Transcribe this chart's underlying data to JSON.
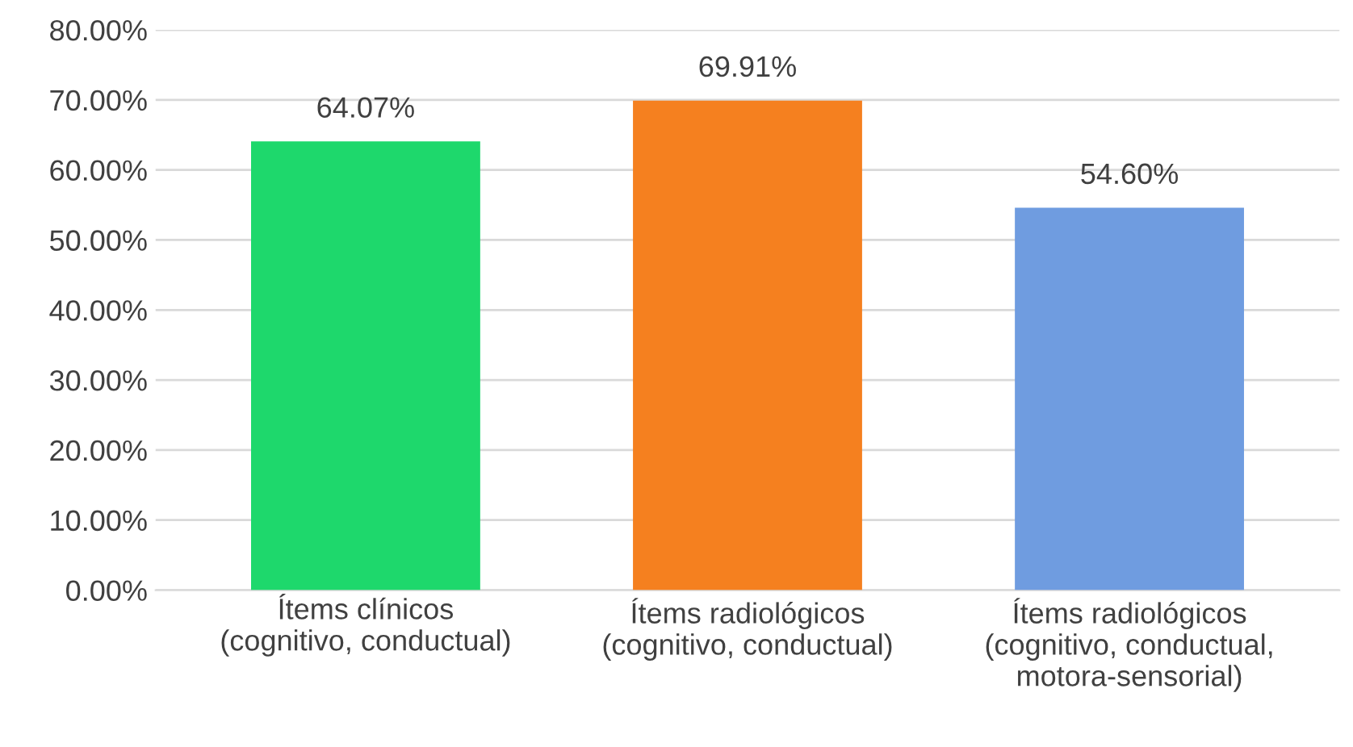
{
  "chart_data": {
    "type": "bar",
    "categories": [
      "Ítems clínicos\n(cognitivo, conductual)",
      "Ítems radiológicos\n(cognitivo, conductual)",
      "Ítems radiológicos\n(cognitivo, conductual,\nmotora-sensorial)"
    ],
    "values": [
      64.07,
      69.91,
      54.6
    ],
    "colors": [
      "#1ed86c",
      "#f5801f",
      "#6f9ce0"
    ],
    "value_labels": [
      "64.07%",
      "69.91%",
      "54.60%"
    ],
    "ylim": [
      0,
      80
    ],
    "yticks": [
      {
        "value": 0,
        "label": "0.00%"
      },
      {
        "value": 10,
        "label": "10.00%"
      },
      {
        "value": 20,
        "label": "20.00%"
      },
      {
        "value": 30,
        "label": "30.00%"
      },
      {
        "value": 40,
        "label": "40.00%"
      },
      {
        "value": 50,
        "label": "50.00%"
      },
      {
        "value": 60,
        "label": "60.00%"
      },
      {
        "value": 70,
        "label": "70.00%"
      },
      {
        "value": 80,
        "label": "80.00%"
      }
    ],
    "grid": "y"
  }
}
